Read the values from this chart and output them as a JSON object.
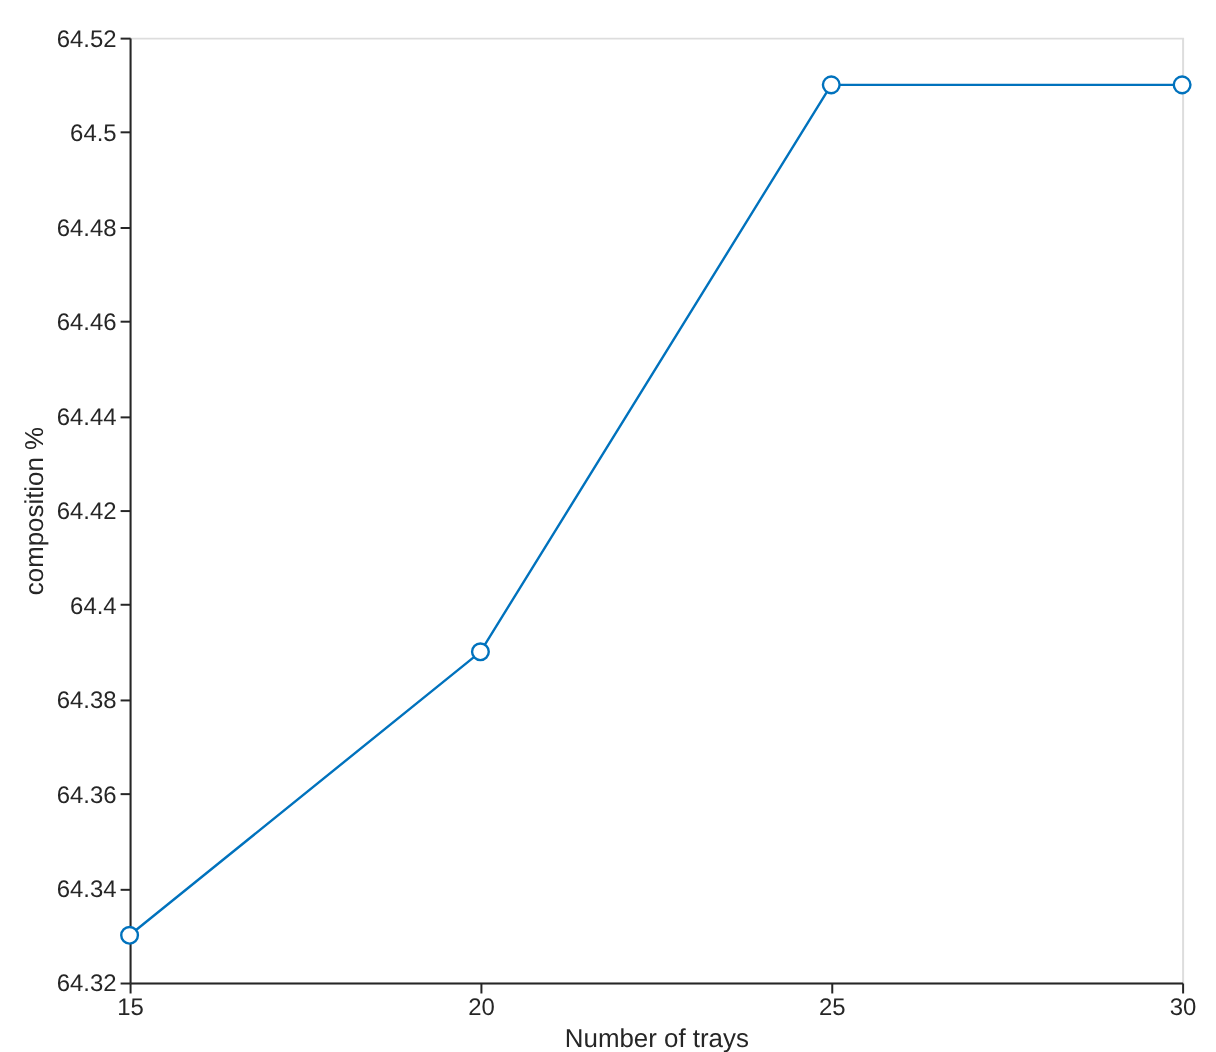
{
  "chart_data": {
    "type": "line",
    "xlabel": "Number of trays",
    "ylabel": "composition %",
    "x": [
      15,
      20,
      25,
      30
    ],
    "series": [
      {
        "color": "#0072bd",
        "values": [
          64.33,
          64.39,
          64.51,
          64.51
        ]
      }
    ],
    "xlim": [
      15,
      30
    ],
    "xticks": [
      15,
      20,
      25,
      30
    ],
    "ylim": [
      64.32,
      64.52
    ],
    "yticks": [
      64.32,
      64.34,
      64.36,
      64.38,
      64.4,
      64.42,
      64.44,
      64.46,
      64.48,
      64.5,
      64.52
    ],
    "marker": "circle",
    "line_style": "solid",
    "grid": false
  }
}
